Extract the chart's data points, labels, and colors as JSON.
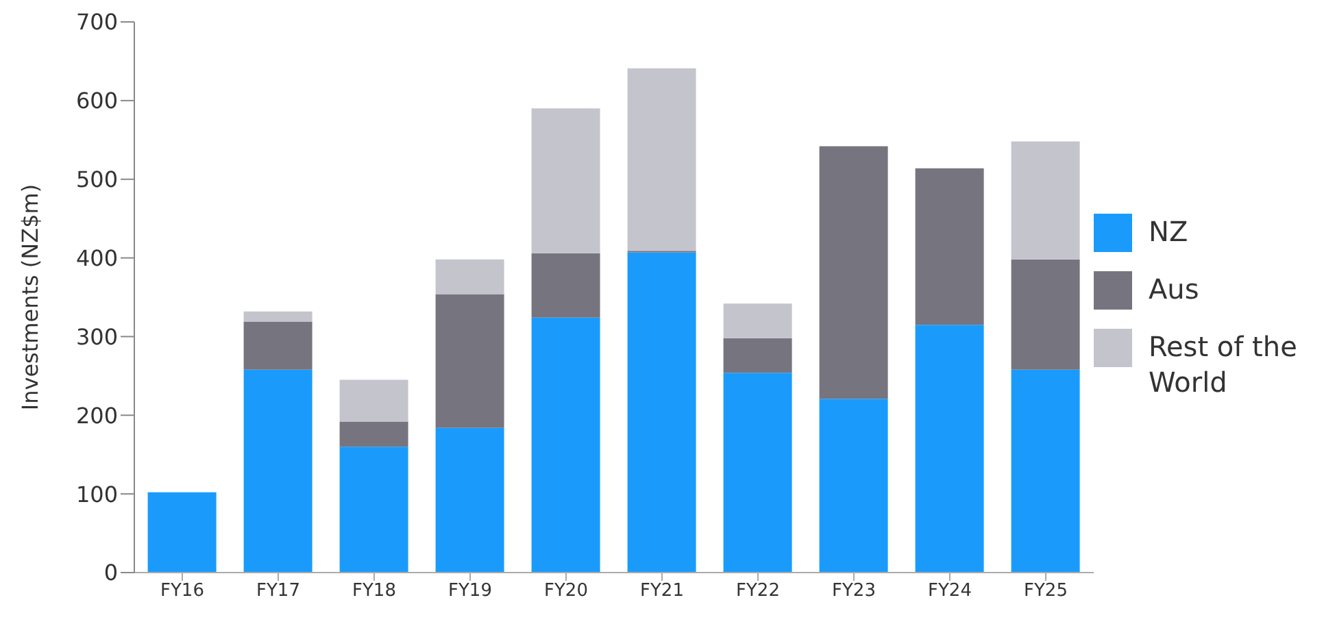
{
  "chart_data": {
    "type": "bar",
    "stacked": true,
    "ylabel": "Investments (NZ$m)",
    "categories": [
      "FY16",
      "FY17",
      "FY18",
      "FY19",
      "FY20",
      "FY21",
      "FY22",
      "FY23",
      "FY24",
      "FY25"
    ],
    "series": [
      {
        "name": "NZ",
        "color": "#1a9bfc",
        "values": [
          102,
          258,
          160,
          184,
          324,
          407,
          254,
          221,
          315,
          258
        ]
      },
      {
        "name": "Aus",
        "color": "#75747f",
        "values": [
          0,
          61,
          32,
          170,
          82,
          2,
          44,
          321,
          199,
          140
        ]
      },
      {
        "name": "Rest of the World",
        "color": "#c4c4cd",
        "values": [
          0,
          13,
          53,
          44,
          184,
          232,
          44,
          null,
          0,
          150
        ]
      }
    ],
    "ylim": [
      0,
      700
    ],
    "yticks": [
      0,
      100,
      200,
      300,
      400,
      500,
      600,
      700
    ],
    "grid": false,
    "legend": "right"
  }
}
